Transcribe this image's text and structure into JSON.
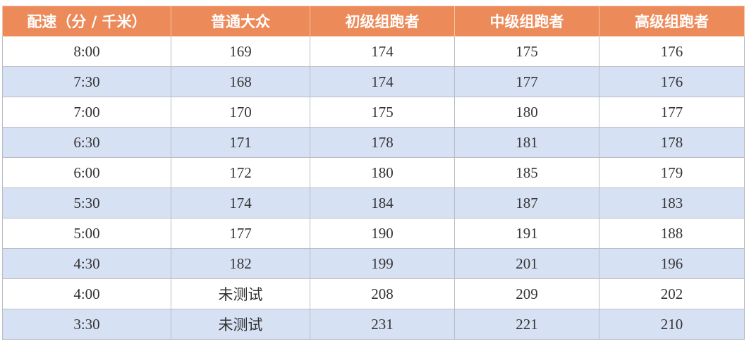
{
  "table": {
    "header": [
      "配速（分 / 千米）",
      "普通大众",
      "初级组跑者",
      "中级组跑者",
      "高级组跑者"
    ],
    "rows": [
      [
        "8:00",
        169,
        174,
        175,
        176
      ],
      [
        "7:30",
        168,
        174,
        177,
        176
      ],
      [
        "7:00",
        170,
        175,
        180,
        177
      ],
      [
        "6:30",
        171,
        178,
        181,
        178
      ],
      [
        "6:00",
        172,
        180,
        185,
        179
      ],
      [
        "5:30",
        174,
        184,
        187,
        183
      ],
      [
        "5:00",
        177,
        190,
        191,
        188
      ],
      [
        "4:30",
        182,
        199,
        201,
        196
      ],
      [
        "4:00",
        "未测试",
        208,
        209,
        202
      ],
      [
        "3:30",
        "未测试",
        231,
        221,
        210
      ]
    ]
  }
}
